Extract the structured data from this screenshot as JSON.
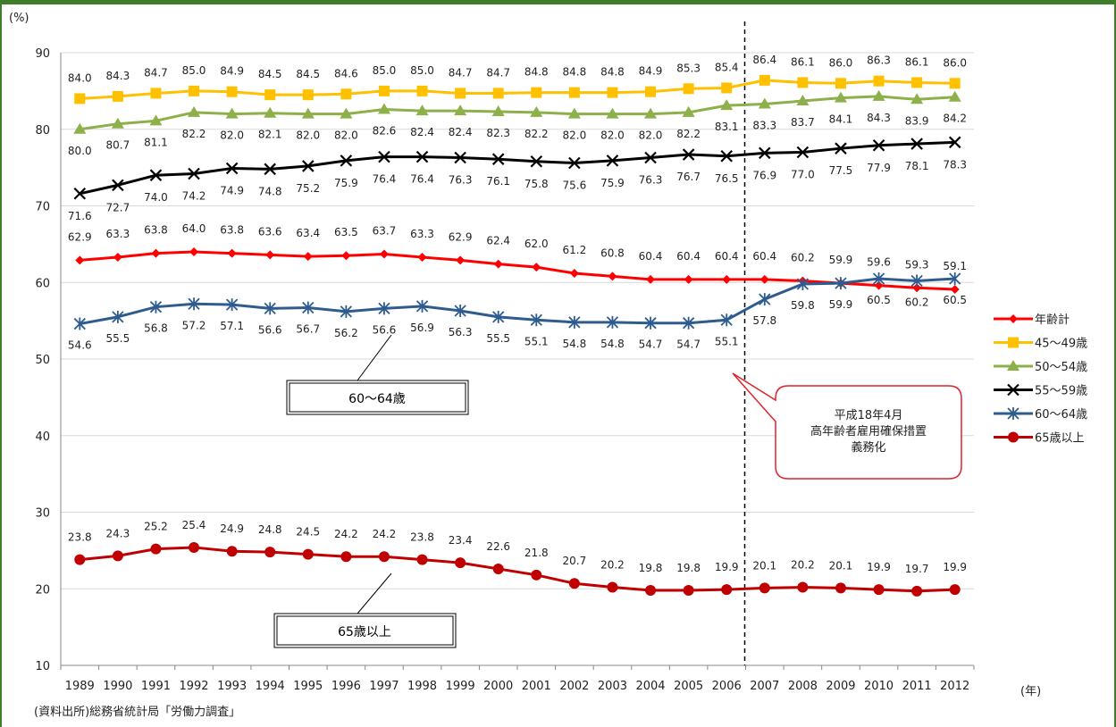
{
  "chart_data": {
    "type": "line",
    "unit_y": "(%)",
    "unit_x": "(年)",
    "source": "(資料出所)総務省統計局「労働力調査」",
    "ylim": [
      10,
      90
    ],
    "yticks": [
      "10",
      "20",
      "30",
      "40",
      "50",
      "60",
      "70",
      "80",
      "90"
    ],
    "x": [
      "1989",
      "1990",
      "1991",
      "1992",
      "1993",
      "1994",
      "1995",
      "1996",
      "1997",
      "1998",
      "1999",
      "2000",
      "2001",
      "2002",
      "2003",
      "2004",
      "2005",
      "2006",
      "2007",
      "2008",
      "2009",
      "2010",
      "2011",
      "2012"
    ],
    "grid": true,
    "legend_position": "right",
    "series": [
      {
        "name": "年齢計",
        "color": "#ff0000",
        "marker": "diamond",
        "values": [
          62.9,
          63.3,
          63.8,
          64.0,
          63.8,
          63.6,
          63.4,
          63.5,
          63.7,
          63.3,
          62.9,
          62.4,
          62.0,
          61.2,
          60.8,
          60.4,
          60.4,
          60.4,
          60.4,
          60.2,
          59.9,
          59.6,
          59.3,
          59.1
        ],
        "labels": [
          "62.9",
          "63.3",
          "63.8",
          "64.0",
          "63.8",
          "63.6",
          "63.4",
          "63.5",
          "63.7",
          "63.3",
          "62.9",
          "62.4",
          "62.0",
          "61.2",
          "60.8",
          "60.4",
          "60.4",
          "60.4",
          "60.4",
          "60.2",
          "59.9",
          "59.6",
          "59.3",
          "59.1"
        ]
      },
      {
        "name": "45〜49歳",
        "color": "#ffc000",
        "marker": "square",
        "values": [
          84.0,
          84.3,
          84.7,
          85.0,
          84.9,
          84.5,
          84.5,
          84.6,
          85.0,
          85.0,
          84.7,
          84.7,
          84.8,
          84.8,
          84.8,
          84.9,
          85.3,
          85.4,
          86.4,
          86.1,
          86.0,
          86.3,
          86.1,
          86.0
        ],
        "labels": [
          "84.0",
          "84.3",
          "84.7",
          "85.0",
          "84.9",
          "84.5",
          "84.5",
          "84.6",
          "85.0",
          "85.0",
          "84.7",
          "84.7",
          "84.8",
          "84.8",
          "84.8",
          "84.9",
          "85.3",
          "85.4",
          "86.4",
          "86.1",
          "86.0",
          "86.3",
          "86.1",
          "86.0"
        ]
      },
      {
        "name": "50〜54歳",
        "color": "#8db04a",
        "marker": "triangle",
        "values": [
          80.0,
          80.7,
          81.1,
          82.2,
          82.0,
          82.1,
          82.0,
          82.0,
          82.6,
          82.4,
          82.4,
          82.3,
          82.2,
          82.0,
          82.0,
          82.0,
          82.2,
          83.1,
          83.3,
          83.7,
          84.1,
          84.3,
          83.9,
          84.2
        ],
        "labels": [
          "80.0",
          "80.7",
          "81.1",
          "82.2",
          "82.0",
          "82.1",
          "82.0",
          "82.0",
          "82.6",
          "82.4",
          "82.4",
          "82.3",
          "82.2",
          "82.0",
          "82.0",
          "82.0",
          "82.2",
          "83.1",
          "83.3",
          "83.7",
          "84.1",
          "84.3",
          "83.9",
          "84.2"
        ]
      },
      {
        "name": "55〜59歳",
        "color": "#000000",
        "marker": "x",
        "values": [
          71.6,
          72.7,
          74.0,
          74.2,
          74.9,
          74.8,
          75.2,
          75.9,
          76.4,
          76.4,
          76.3,
          76.1,
          75.8,
          75.6,
          75.9,
          76.3,
          76.7,
          76.5,
          76.9,
          77.0,
          77.5,
          77.9,
          78.1,
          78.3
        ],
        "labels": [
          "71.6",
          "72.7",
          "74.0",
          "74.2",
          "74.9",
          "74.8",
          "75.2",
          "75.9",
          "76.4",
          "76.4",
          "76.3",
          "76.1",
          "75.8",
          "75.6",
          "75.9",
          "76.3",
          "76.7",
          "76.5",
          "76.9",
          "77.0",
          "77.5",
          "77.9",
          "78.1",
          "78.3"
        ]
      },
      {
        "name": "60〜64歳",
        "color": "#2e5c8f",
        "marker": "asterisk",
        "values": [
          54.6,
          55.5,
          56.8,
          57.2,
          57.1,
          56.6,
          56.7,
          56.2,
          56.6,
          56.9,
          56.3,
          55.5,
          55.1,
          54.8,
          54.8,
          54.7,
          54.7,
          55.1,
          57.8,
          59.8,
          59.9,
          60.5,
          60.2,
          60.5
        ],
        "labels": [
          "54.6",
          "55.5",
          "56.8",
          "57.2",
          "57.1",
          "56.6",
          "56.7",
          "56.2",
          "56.6",
          "56.9",
          "56.3",
          "55.5",
          "55.1",
          "54.8",
          "54.8",
          "54.7",
          "54.7",
          "55.1",
          "57.8",
          "59.8",
          "59.9",
          "60.5",
          "60.2",
          "60.5"
        ]
      },
      {
        "name": "65歳以上",
        "color": "#c00000",
        "marker": "circle",
        "values": [
          23.8,
          24.3,
          25.2,
          25.4,
          24.9,
          24.8,
          24.5,
          24.2,
          24.2,
          23.8,
          23.4,
          22.6,
          21.8,
          20.7,
          20.2,
          19.8,
          19.8,
          19.9,
          20.1,
          20.2,
          20.1,
          19.9,
          19.7,
          19.9
        ],
        "labels": [
          "23.8",
          "24.3",
          "25.2",
          "25.4",
          "24.9",
          "24.8",
          "24.5",
          "24.2",
          "24.2",
          "23.8",
          "23.4",
          "22.6",
          "21.8",
          "20.7",
          "20.2",
          "19.8",
          "19.8",
          "19.9",
          "20.1",
          "20.2",
          "20.1",
          "19.9",
          "19.7",
          "19.9"
        ]
      }
    ],
    "annotations": {
      "box_60_64": "60〜64歳",
      "box_65": "65歳以上",
      "callout_lines": [
        "平成18年4月",
        "高年齢者雇用確保措置",
        "義務化"
      ],
      "reference_line_year": "2006"
    }
  }
}
